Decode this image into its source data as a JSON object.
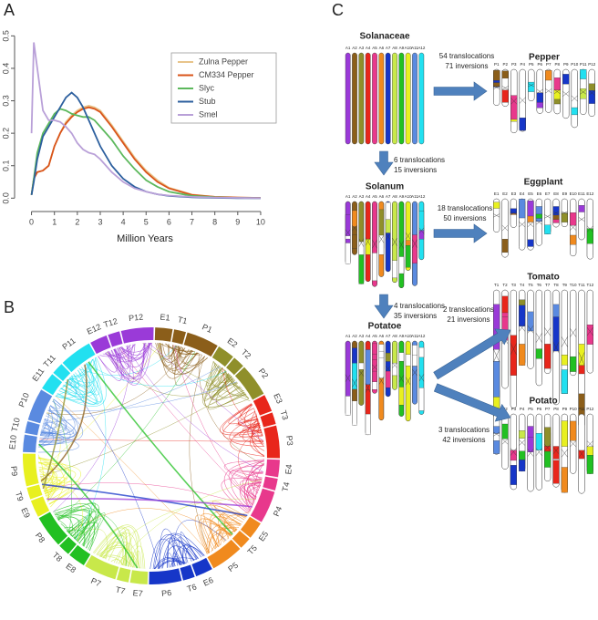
{
  "panel_labels": [
    "A",
    "B",
    "C"
  ],
  "chart_data": {
    "type": "line",
    "xlabel": "Million Years",
    "x": [
      0,
      0.1,
      0.25,
      0.5,
      0.75,
      1,
      1.25,
      1.5,
      1.75,
      2,
      2.25,
      2.5,
      2.75,
      3,
      3.5,
      4,
      4.5,
      5,
      5.5,
      6,
      7,
      8,
      9,
      10
    ],
    "xlim": [
      -0.5,
      10.4
    ],
    "xticks": [
      0,
      1,
      2,
      3,
      4,
      5,
      6,
      7,
      8,
      9,
      10
    ],
    "ylim": [
      -0.03,
      0.56
    ],
    "yticks": [
      {
        "value": 0,
        "label": "0.0"
      },
      0.1,
      0.2,
      0.3,
      0.4,
      0.5
    ],
    "legend": "upper right",
    "series": [
      {
        "name": "Zulna Pepper",
        "color": "#e8c48a",
        "values": [
          0.01,
          0.06,
          0.08,
          0.085,
          0.1,
          0.16,
          0.2,
          0.235,
          0.255,
          0.27,
          0.28,
          0.285,
          0.28,
          0.27,
          0.225,
          0.175,
          0.125,
          0.085,
          0.055,
          0.032,
          0.011,
          0.004,
          0.002,
          0.001
        ]
      },
      {
        "name": "CM334 Pepper",
        "color": "#d9541a",
        "values": [
          0.01,
          0.06,
          0.08,
          0.085,
          0.1,
          0.16,
          0.2,
          0.23,
          0.25,
          0.265,
          0.275,
          0.28,
          0.275,
          0.265,
          0.22,
          0.17,
          0.12,
          0.08,
          0.05,
          0.03,
          0.01,
          0.004,
          0.002,
          0.001
        ]
      },
      {
        "name": "Slyc",
        "color": "#5cb85c",
        "values": [
          0.01,
          0.06,
          0.14,
          0.2,
          0.23,
          0.26,
          0.275,
          0.27,
          0.26,
          0.255,
          0.25,
          0.25,
          0.24,
          0.22,
          0.18,
          0.13,
          0.09,
          0.055,
          0.035,
          0.02,
          0.007,
          0.003,
          0.001,
          0
        ]
      },
      {
        "name": "Stub",
        "color": "#2c5f9e",
        "values": [
          0.01,
          0.05,
          0.12,
          0.19,
          0.22,
          0.25,
          0.28,
          0.31,
          0.325,
          0.31,
          0.28,
          0.24,
          0.2,
          0.16,
          0.1,
          0.06,
          0.035,
          0.02,
          0.012,
          0.007,
          0.003,
          0.001,
          0,
          0
        ]
      },
      {
        "name": "Smel",
        "color": "#b9a0d8",
        "values": [
          0.2,
          0.48,
          0.4,
          0.27,
          0.24,
          0.24,
          0.235,
          0.22,
          0.2,
          0.17,
          0.15,
          0.14,
          0.135,
          0.12,
          0.08,
          0.05,
          0.03,
          0.02,
          0.012,
          0.008,
          0.004,
          0.002,
          0.001,
          0
        ]
      }
    ]
  },
  "circos": {
    "chromosome_colors": [
      "#8b5e1a",
      "#8f8f2a",
      "#e8261b",
      "#e8388c",
      "#f08a1e",
      "#1636c8",
      "#c8e84a",
      "#22c022",
      "#e8f020",
      "#5a8ae0",
      "#22e0f0",
      "#9a3ad8"
    ],
    "segments": [
      "E1",
      "T1",
      "P1",
      "E2",
      "T2",
      "P2",
      "E3",
      "T3",
      "P3",
      "E4",
      "T4",
      "P4",
      "E5",
      "T5",
      "P5",
      "E6",
      "T6",
      "P6",
      "E7",
      "T7",
      "P7",
      "E8",
      "T8",
      "P8",
      "E9",
      "T9",
      "P9",
      "E10",
      "T10",
      "P10",
      "E11",
      "T11",
      "P11",
      "E12",
      "T12",
      "P12"
    ]
  },
  "diagram": {
    "karyotypes": [
      {
        "name": "Solanaceae",
        "chromosomes": [
          "A1",
          "A2",
          "A3",
          "A4",
          "A5",
          "A6",
          "A7",
          "A8",
          "A9",
          "A10",
          "A11",
          "A12"
        ]
      },
      {
        "name": "Pepper",
        "chromosomes": [
          "P1",
          "P2",
          "P3",
          "P4",
          "P5",
          "P6",
          "P7",
          "P8",
          "P9",
          "P10",
          "P11",
          "P12"
        ]
      },
      {
        "name": "Solanum",
        "chromosomes": [
          "A1",
          "A2",
          "A3",
          "A4",
          "A5",
          "A6",
          "A7",
          "A8",
          "A9",
          "A10",
          "A11",
          "A12"
        ]
      },
      {
        "name": "Eggplant",
        "chromosomes": [
          "E1",
          "E2",
          "E3",
          "E4",
          "E5",
          "E6",
          "E7",
          "E8",
          "E9",
          "E10",
          "E11",
          "E12"
        ]
      },
      {
        "name": "Potatoe",
        "chromosomes": [
          "A1",
          "A2",
          "A3",
          "A4",
          "A5",
          "A6",
          "A7",
          "A8",
          "A9",
          "A10",
          "A11",
          "A12"
        ]
      },
      {
        "name": "Tomato",
        "chromosomes": [
          "T1",
          "T2",
          "T3",
          "T4",
          "T5",
          "T6",
          "T7",
          "T8",
          "T9",
          "T10",
          "T11",
          "T12"
        ]
      },
      {
        "name": "Potato",
        "chromosomes": [
          "P1",
          "P2",
          "P3",
          "P4",
          "P5",
          "P6",
          "P7",
          "P8",
          "P9",
          "P10",
          "P11",
          "P12"
        ]
      }
    ],
    "transitions": [
      {
        "lines": [
          "54 translocations",
          "71 inversions"
        ]
      },
      {
        "lines": [
          "6 translocations",
          "15 inversions"
        ]
      },
      {
        "lines": [
          "18 translocations",
          "50 inversions"
        ]
      },
      {
        "lines": [
          "4 translocations",
          "35 inversions"
        ]
      },
      {
        "lines": [
          "2 translocations",
          "21 inversions"
        ]
      },
      {
        "lines": [
          "3 translocations",
          "42 inversions"
        ]
      }
    ]
  }
}
